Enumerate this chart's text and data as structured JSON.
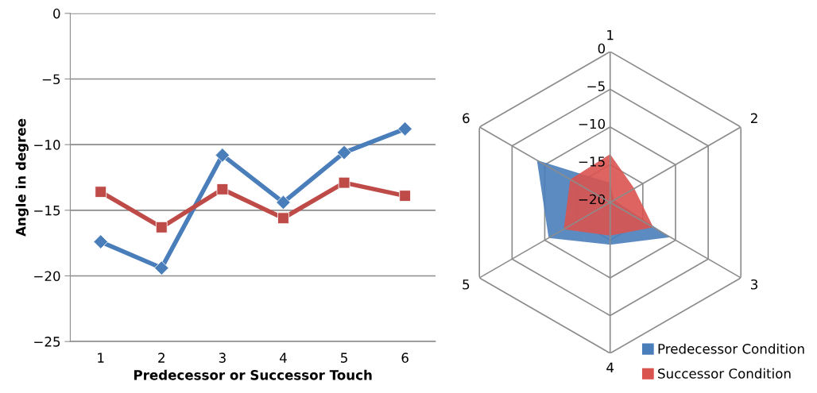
{
  "chart_data": [
    {
      "type": "line",
      "xlabel": "Predecessor or Successor Touch",
      "ylabel": "Angle in degree",
      "categories": [
        "1",
        "2",
        "3",
        "4",
        "5",
        "6"
      ],
      "ylim": [
        -25,
        0
      ],
      "yticks": [
        0,
        -5,
        -10,
        -15,
        -20,
        -25
      ],
      "grid": "y",
      "legend": false,
      "line_style": "solid",
      "series": [
        {
          "color": "#4a7ebb",
          "marker": "diamond",
          "values": [
            -17.4,
            -19.4,
            -10.8,
            -14.4,
            -10.6,
            -8.8
          ]
        },
        {
          "color": "#be4b48",
          "marker": "square",
          "values": [
            -13.6,
            -16.3,
            -13.4,
            -15.6,
            -12.9,
            -13.9
          ]
        }
      ]
    },
    {
      "type": "radar",
      "categories": [
        "1",
        "2",
        "3",
        "4",
        "5",
        "6"
      ],
      "ylim": [
        -20,
        0
      ],
      "yticks": [
        0,
        -5,
        -10,
        -15,
        -20
      ],
      "legend": "bottom right",
      "series": [
        {
          "name": "Predecessor Condition",
          "color": "#4a7ebb",
          "values": [
            -17.4,
            -19.4,
            -10.8,
            -14.4,
            -10.6,
            -8.8
          ]
        },
        {
          "name": "Successor Condition",
          "color": "#d9534f",
          "values": [
            -13.6,
            -16.3,
            -13.4,
            -15.6,
            -12.9,
            -13.9
          ]
        }
      ]
    }
  ]
}
